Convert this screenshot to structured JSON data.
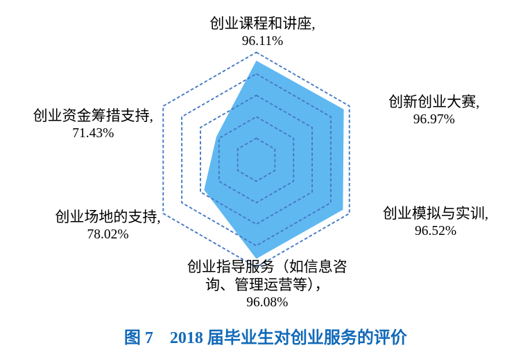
{
  "chart_data": {
    "type": "radar",
    "categories": [
      "创业课程和讲座",
      "创新创业大赛",
      "创业模拟与实训",
      "创业指导服务（如信息咨询、管理运营等）",
      "创业场地的支持",
      "创业资金筹措支持"
    ],
    "values": [
      96.11,
      96.97,
      96.52,
      96.08,
      78.02,
      71.43
    ],
    "unit": "%",
    "axis": {
      "min": 50,
      "max": 100,
      "step": 10,
      "rings": 5
    },
    "grid": {
      "shape": "hexagon",
      "style": "dashed",
      "color": "#4579c4",
      "visible": true
    },
    "series": [
      {
        "name": "2018届毕业生对创业服务的评价",
        "fill": "#60b8f1"
      }
    ],
    "legend": "none",
    "data_labels": [
      {
        "lines": [
          "创业课程和讲座,",
          "96.11%"
        ]
      },
      {
        "lines": [
          "创新创业大赛,",
          "96.97%"
        ]
      },
      {
        "lines": [
          "创业模拟与实训,",
          "96.52%"
        ]
      },
      {
        "lines": [
          "创业指导服务（如信息咨",
          "询、管理运营等），",
          "96.08%"
        ]
      },
      {
        "lines": [
          "创业场地的支持,",
          "78.02%"
        ]
      },
      {
        "lines": [
          "创业资金筹措支持,",
          "71.43%"
        ]
      }
    ]
  },
  "caption": {
    "prefix": "图 7",
    "text": "2018 届毕业生对创业服务的评价",
    "color": "#1169b8"
  }
}
